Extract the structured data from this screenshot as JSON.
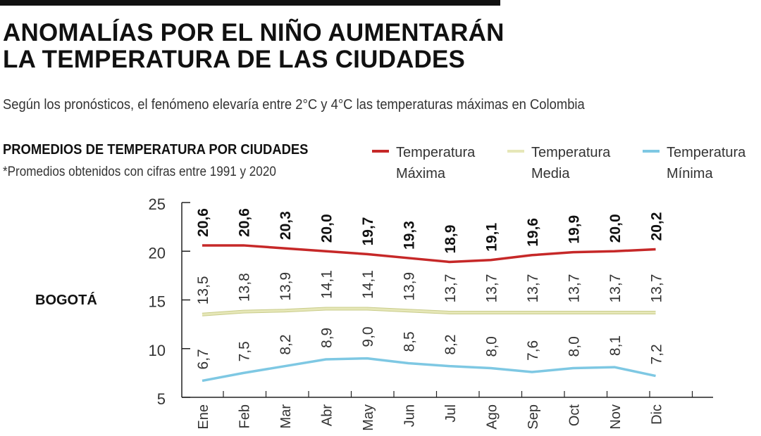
{
  "headline": {
    "line1": "ANOMALÍAS POR EL NIÑO AUMENTARÁN",
    "line2": "LA TEMPERATURA DE LAS CIUDADES"
  },
  "subtitle": "Según los pronósticos, el fenómeno elevaría entre 2°C y 4°C las  temperaturas máximas en Colombia",
  "section_title": "PROMEDIOS DE TEMPERATURA POR CIUDADES",
  "note": "*Promedios obtenidos con cifras entre 1991 y 2020",
  "legend": [
    {
      "line1": "Temperatura",
      "line2": "Máxima",
      "color": "#c62828"
    },
    {
      "line1": "Temperatura",
      "line2": "Media",
      "color": "#e6e7b8"
    },
    {
      "line1": "Temperatura",
      "line2": "Mínima",
      "color": "#7ec8e3"
    }
  ],
  "city": "BOGOTÁ",
  "chart_data": {
    "type": "line",
    "title": "",
    "xlabel": "",
    "ylabel": "",
    "categories": [
      "Ene",
      "Feb",
      "Mar",
      "Abr",
      "May",
      "Jun",
      "Jul",
      "Ago",
      "Sep",
      "Oct",
      "Nov",
      "Dic"
    ],
    "ylim": [
      5,
      25
    ],
    "yticks": [
      5,
      10,
      15,
      20,
      25
    ],
    "series": [
      {
        "name": "Temperatura Máxima",
        "color": "#c62828",
        "values": [
          20.6,
          20.6,
          20.3,
          20.0,
          19.7,
          19.3,
          18.9,
          19.1,
          19.6,
          19.9,
          20.0,
          20.2
        ],
        "labels": [
          "20,6",
          "20,6",
          "20,3",
          "20,0",
          "19,7",
          "19,3",
          "18,9",
          "19,1",
          "19,6",
          "19,9",
          "20,0",
          "20,2"
        ]
      },
      {
        "name": "Temperatura Media",
        "color": "#e6e7b8",
        "values": [
          13.5,
          13.8,
          13.9,
          14.1,
          14.1,
          13.9,
          13.7,
          13.7,
          13.7,
          13.7,
          13.7,
          13.7
        ],
        "labels": [
          "13,5",
          "13,8",
          "13,9",
          "14,1",
          "14,1",
          "13,9",
          "13,7",
          "13,7",
          "13,7",
          "13,7",
          "13,7",
          "13,7"
        ]
      },
      {
        "name": "Temperatura Mínima",
        "color": "#7ec8e3",
        "values": [
          6.7,
          7.5,
          8.2,
          8.9,
          9.0,
          8.5,
          8.2,
          8.0,
          7.6,
          8.0,
          8.1,
          7.2
        ],
        "labels": [
          "6,7",
          "7,5",
          "8,2",
          "8,9",
          "9,0",
          "8,5",
          "8,2",
          "8,0",
          "7,6",
          "8,0",
          "8,1",
          "7,2"
        ]
      }
    ],
    "grid": false,
    "legend_position": "top-right"
  }
}
